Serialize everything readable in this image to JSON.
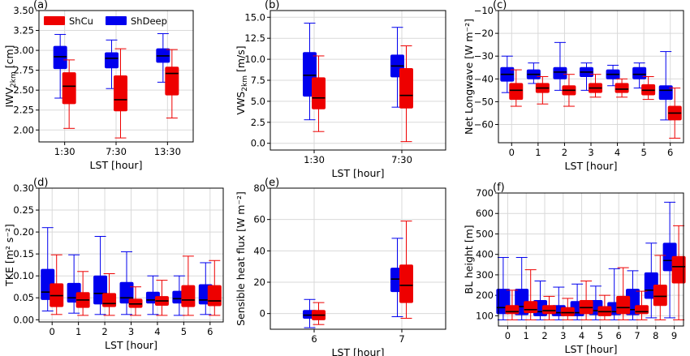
{
  "colors": {
    "shcu": "#ee0000",
    "shdeep": "#0000ee",
    "median": "#000000",
    "grid": "#d9d9d9"
  },
  "legend": [
    {
      "name": "ShCu",
      "color": "#ee0000"
    },
    {
      "name": "ShDeep",
      "color": "#0000ee"
    }
  ],
  "chart_data": [
    {
      "panel": "(a)",
      "type": "box",
      "ylabel": "IWV2km [cm]",
      "ylabel_main": "IWV",
      "ylabel_sub": "2km",
      "ylabel_unit": " [cm]",
      "xlabel": "LST [hour]",
      "categories": [
        "1:30",
        "7:30",
        "13:30"
      ],
      "ylim": [
        1.85,
        3.5
      ],
      "yticks": [
        "2.00",
        "2.25",
        "2.50",
        "2.75",
        "3.00",
        "3.25",
        "3.50"
      ],
      "ytick_values": [
        2.0,
        2.25,
        2.5,
        2.75,
        3.0,
        3.25,
        3.5
      ],
      "grid": true,
      "legend": "top-left",
      "series": [
        {
          "name": "ShDeep",
          "boxes": [
            [
              2.4,
              2.77,
              2.92,
              3.05,
              3.2
            ],
            [
              2.52,
              2.78,
              2.9,
              2.97,
              3.13
            ],
            [
              2.6,
              2.85,
              2.93,
              3.02,
              3.21
            ]
          ]
        },
        {
          "name": "ShCu",
          "boxes": [
            [
              2.02,
              2.33,
              2.55,
              2.72,
              2.88
            ],
            [
              1.9,
              2.24,
              2.38,
              2.68,
              3.02
            ],
            [
              2.15,
              2.44,
              2.71,
              2.79,
              3.01
            ]
          ]
        }
      ]
    },
    {
      "panel": "(b)",
      "type": "box",
      "ylabel": "VWS2km [m/s]",
      "ylabel_main": "VWS",
      "ylabel_sub": "2km",
      "ylabel_unit": " [m/s]",
      "xlabel": "LST [hour]",
      "categories": [
        "1:30",
        "7:30"
      ],
      "ylim": [
        -0.8,
        15.8
      ],
      "yticks": [
        "0.0",
        "2.5",
        "5.0",
        "7.5",
        "10.0",
        "12.5",
        "15.0"
      ],
      "ytick_values": [
        0,
        2.5,
        5,
        7.5,
        10,
        12.5,
        15
      ],
      "grid": true,
      "series": [
        {
          "name": "ShDeep",
          "boxes": [
            [
              2.8,
              5.6,
              8.1,
              10.8,
              14.3
            ],
            [
              4.3,
              7.9,
              9.2,
              10.5,
              13.8
            ]
          ]
        },
        {
          "name": "ShCu",
          "boxes": [
            [
              1.4,
              4.1,
              5.4,
              7.8,
              10.4
            ],
            [
              0.2,
              4.2,
              5.7,
              8.9,
              11.6
            ]
          ]
        }
      ]
    },
    {
      "panel": "(c)",
      "type": "box",
      "ylabel": "Net Longwave [W m⁻²]",
      "xlabel": "LST [hour]",
      "categories": [
        "0",
        "1",
        "2",
        "3",
        "4",
        "5",
        "6"
      ],
      "ylim": [
        -68,
        -10
      ],
      "yticks": [
        "−10",
        "−20",
        "−30",
        "−40",
        "−50",
        "−60"
      ],
      "ytick_values": [
        -10,
        -20,
        -30,
        -40,
        -50,
        -60
      ],
      "grid": true,
      "series": [
        {
          "name": "ShDeep",
          "boxes": [
            [
              -46,
              -41,
              -38,
              -35,
              -30
            ],
            [
              -42,
              -40,
              -38,
              -36,
              -33
            ],
            [
              -45,
              -40,
              -37,
              -35,
              -24
            ],
            [
              -45,
              -39,
              -37,
              -35,
              -33
            ],
            [
              -43,
              -40,
              -38,
              -36,
              -34
            ],
            [
              -44,
              -40,
              -38,
              -35,
              -33
            ],
            [
              -58,
              -49,
              -45,
              -43,
              -28
            ]
          ]
        },
        {
          "name": "ShCu",
          "boxes": [
            [
              -52,
              -49,
              -45,
              -42,
              -36
            ],
            [
              -51,
              -46,
              -44,
              -42,
              -39
            ],
            [
              -52,
              -47,
              -45,
              -43,
              -38
            ],
            [
              -48,
              -46,
              -44,
              -42,
              -38
            ],
            [
              -48,
              -46,
              -44.5,
              -42,
              -40
            ],
            [
              -49,
              -47,
              -45,
              -42.5,
              -39
            ],
            [
              -66,
              -58,
              -55,
              -52,
              -44
            ]
          ]
        }
      ]
    },
    {
      "panel": "(d)",
      "type": "box",
      "ylabel": "TKE [m² s⁻²]",
      "xlabel": "LST [hour]",
      "categories": [
        "0",
        "1",
        "2",
        "3",
        "4",
        "5",
        "6"
      ],
      "ylim": [
        -0.005,
        0.3
      ],
      "yticks": [
        "0.00",
        "0.05",
        "0.10",
        "0.15",
        "0.20",
        "0.25",
        "0.30"
      ],
      "ytick_values": [
        0,
        0.05,
        0.1,
        0.15,
        0.2,
        0.25,
        0.3
      ],
      "grid": true,
      "series": [
        {
          "name": "ShDeep",
          "boxes": [
            [
              0.02,
              0.046,
              0.063,
              0.115,
              0.21
            ],
            [
              0.015,
              0.04,
              0.05,
              0.083,
              0.148
            ],
            [
              0.012,
              0.036,
              0.06,
              0.1,
              0.19
            ],
            [
              0.012,
              0.038,
              0.05,
              0.085,
              0.155
            ],
            [
              0.012,
              0.038,
              0.045,
              0.063,
              0.1
            ],
            [
              0.01,
              0.038,
              0.048,
              0.065,
              0.1
            ],
            [
              0.012,
              0.036,
              0.045,
              0.08,
              0.13
            ]
          ]
        },
        {
          "name": "ShCu",
          "boxes": [
            [
              0.012,
              0.03,
              0.055,
              0.082,
              0.148
            ],
            [
              0.01,
              0.028,
              0.045,
              0.062,
              0.11
            ],
            [
              0.01,
              0.03,
              0.037,
              0.06,
              0.105
            ],
            [
              0.01,
              0.028,
              0.036,
              0.047,
              0.075
            ],
            [
              0.01,
              0.033,
              0.043,
              0.053,
              0.09
            ],
            [
              0.01,
              0.03,
              0.045,
              0.078,
              0.145
            ],
            [
              0.01,
              0.032,
              0.043,
              0.078,
              0.135
            ]
          ]
        }
      ]
    },
    {
      "panel": "(e)",
      "type": "box",
      "ylabel": "Sensible heat flux [W m⁻²]",
      "xlabel": "LST [hour]",
      "categories": [
        "6",
        "7"
      ],
      "ylim": [
        -10,
        80
      ],
      "yticks": [
        "0",
        "20",
        "40",
        "60",
        "80"
      ],
      "ytick_values": [
        0,
        20,
        40,
        60,
        80
      ],
      "grid": true,
      "series": [
        {
          "name": "ShDeep",
          "boxes": [
            [
              -9,
              -3,
              -1,
              2,
              9
            ],
            [
              -2,
              14,
              22,
              29,
              48
            ]
          ]
        },
        {
          "name": "ShCu",
          "boxes": [
            [
              -7,
              -4,
              -1,
              2,
              7
            ],
            [
              -3,
              7,
              18,
              31,
              59
            ]
          ]
        }
      ]
    },
    {
      "panel": "(f)",
      "type": "box",
      "ylabel": "BL height [m]",
      "xlabel": "LST [hour]",
      "categories": [
        "0",
        "1",
        "2",
        "3",
        "4",
        "5",
        "6",
        "7",
        "8",
        "9"
      ],
      "ylim": [
        50,
        700
      ],
      "yticks": [
        "100",
        "200",
        "300",
        "400",
        "500",
        "600",
        "700"
      ],
      "ytick_values": [
        100,
        200,
        300,
        400,
        500,
        600,
        700
      ],
      "grid": true,
      "series": [
        {
          "name": "ShDeep",
          "boxes": [
            [
              80,
              110,
              140,
              230,
              385
            ],
            [
              80,
              105,
              145,
              230,
              385
            ],
            [
              80,
              100,
              120,
              175,
              270
            ],
            [
              80,
              100,
              115,
              150,
              240
            ],
            [
              80,
              100,
              115,
              170,
              255
            ],
            [
              80,
              105,
              125,
              175,
              245
            ],
            [
              80,
              105,
              120,
              165,
              330
            ],
            [
              80,
              105,
              130,
              230,
              320
            ],
            [
              90,
              185,
              225,
              310,
              455
            ],
            [
              90,
              320,
              370,
              455,
              655
            ]
          ]
        },
        {
          "name": "ShCu",
          "boxes": [
            [
              80,
              110,
              120,
              150,
              225
            ],
            [
              80,
              115,
              130,
              170,
              325
            ],
            [
              80,
              110,
              125,
              150,
              195
            ],
            [
              80,
              100,
              115,
              140,
              185
            ],
            [
              80,
              110,
              140,
              175,
              270
            ],
            [
              80,
              100,
              120,
              145,
              200
            ],
            [
              80,
              110,
              140,
              195,
              335
            ],
            [
              80,
              110,
              120,
              150,
              220
            ],
            [
              80,
              150,
              195,
              250,
              395
            ],
            [
              80,
              260,
              340,
              390,
              540
            ]
          ]
        }
      ]
    }
  ]
}
